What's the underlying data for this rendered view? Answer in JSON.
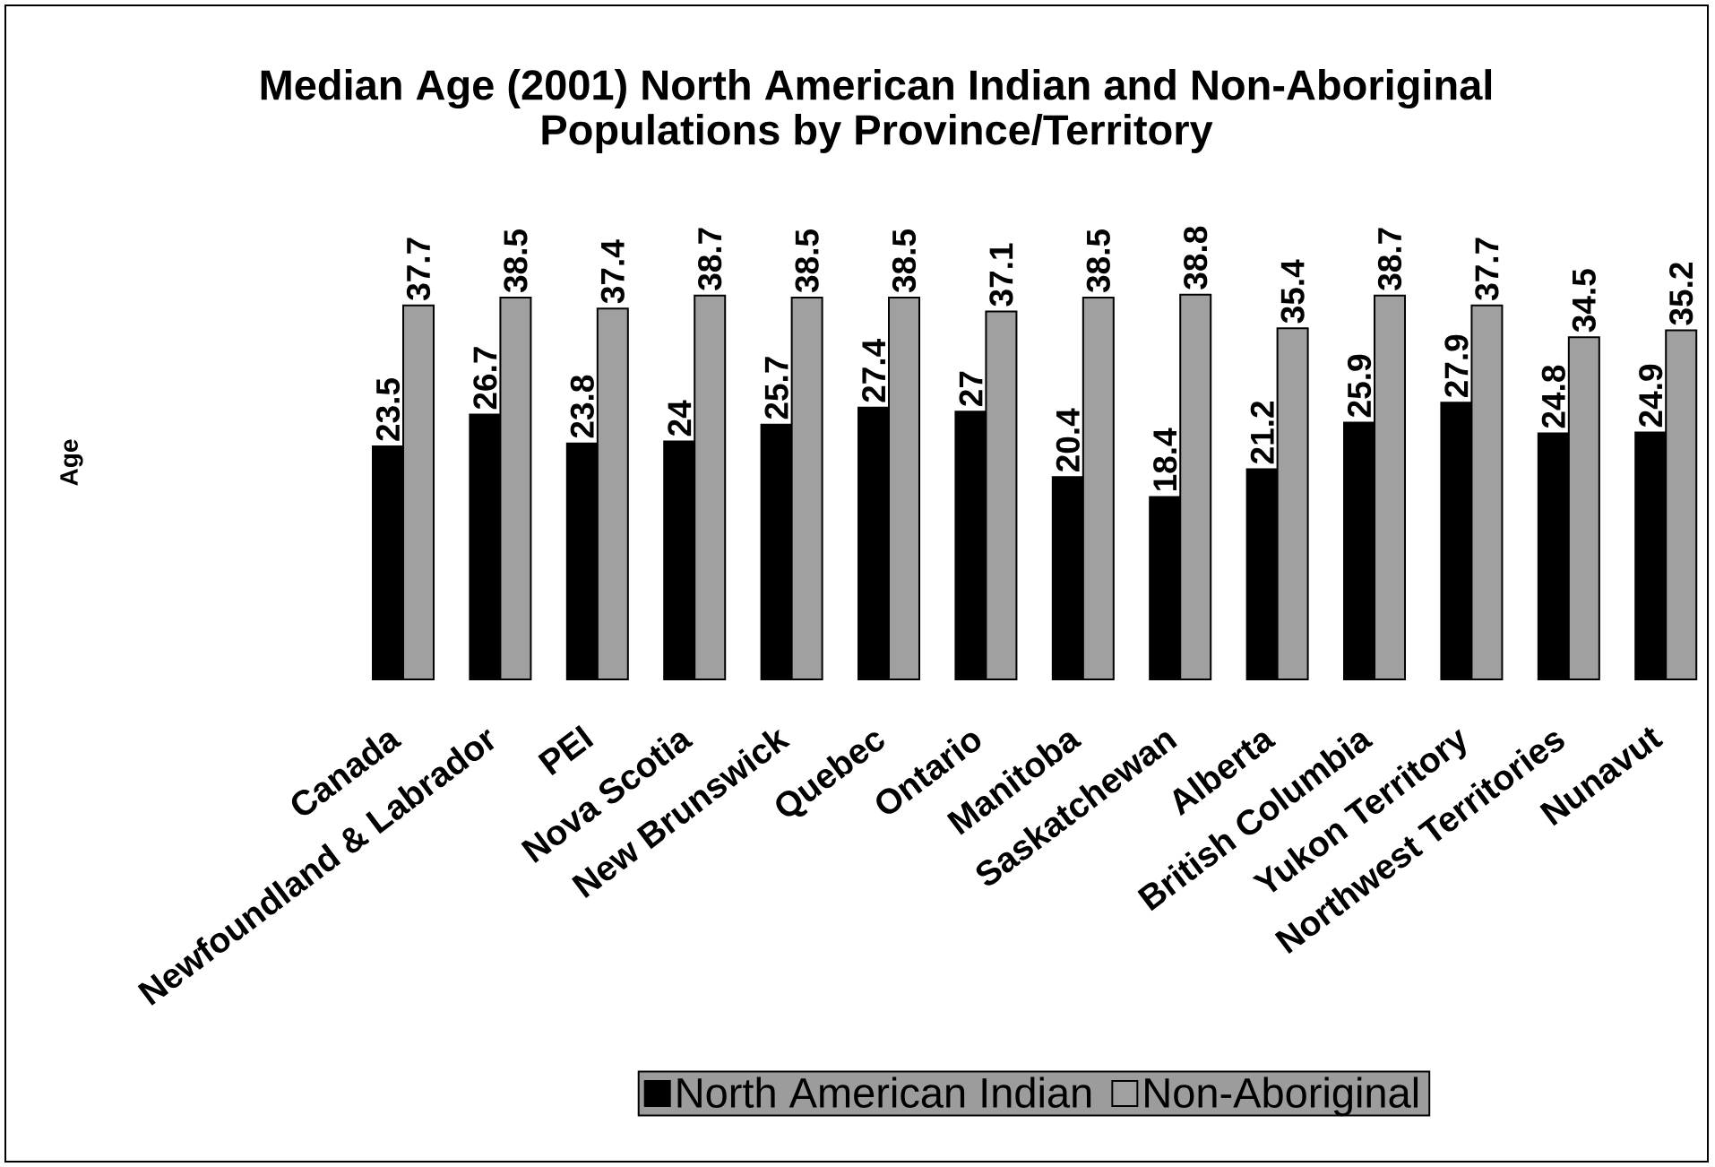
{
  "chart_data": {
    "type": "bar",
    "title": "Median Age (2001) North American Indian and Non-Aboriginal Populations by Province/Territory",
    "ylabel": "Age",
    "categories": [
      "Canada",
      "Newfoundland & Labrador",
      "PEI",
      "Nova Scotia",
      "New Brunswick",
      "Quebec",
      "Ontario",
      "Manitoba",
      "Saskatchewan",
      "Alberta",
      "British Columbia",
      "Yukon Territory",
      "Northwest Territories",
      "Nunavut"
    ],
    "series": [
      {
        "name": "North American Indian",
        "color": "#000000",
        "values": [
          23.5,
          26.7,
          23.8,
          24,
          25.7,
          27.4,
          27,
          20.4,
          18.4,
          21.2,
          25.9,
          27.9,
          24.8,
          24.9
        ]
      },
      {
        "name": "Non-Aboriginal",
        "color": "#a0a0a0",
        "values": [
          37.7,
          38.5,
          37.4,
          38.7,
          38.5,
          38.5,
          37.1,
          38.5,
          38.8,
          35.4,
          38.7,
          37.7,
          34.5,
          35.2
        ]
      }
    ],
    "data_labels": true,
    "legend": "bottom",
    "tick_labels": "x"
  }
}
